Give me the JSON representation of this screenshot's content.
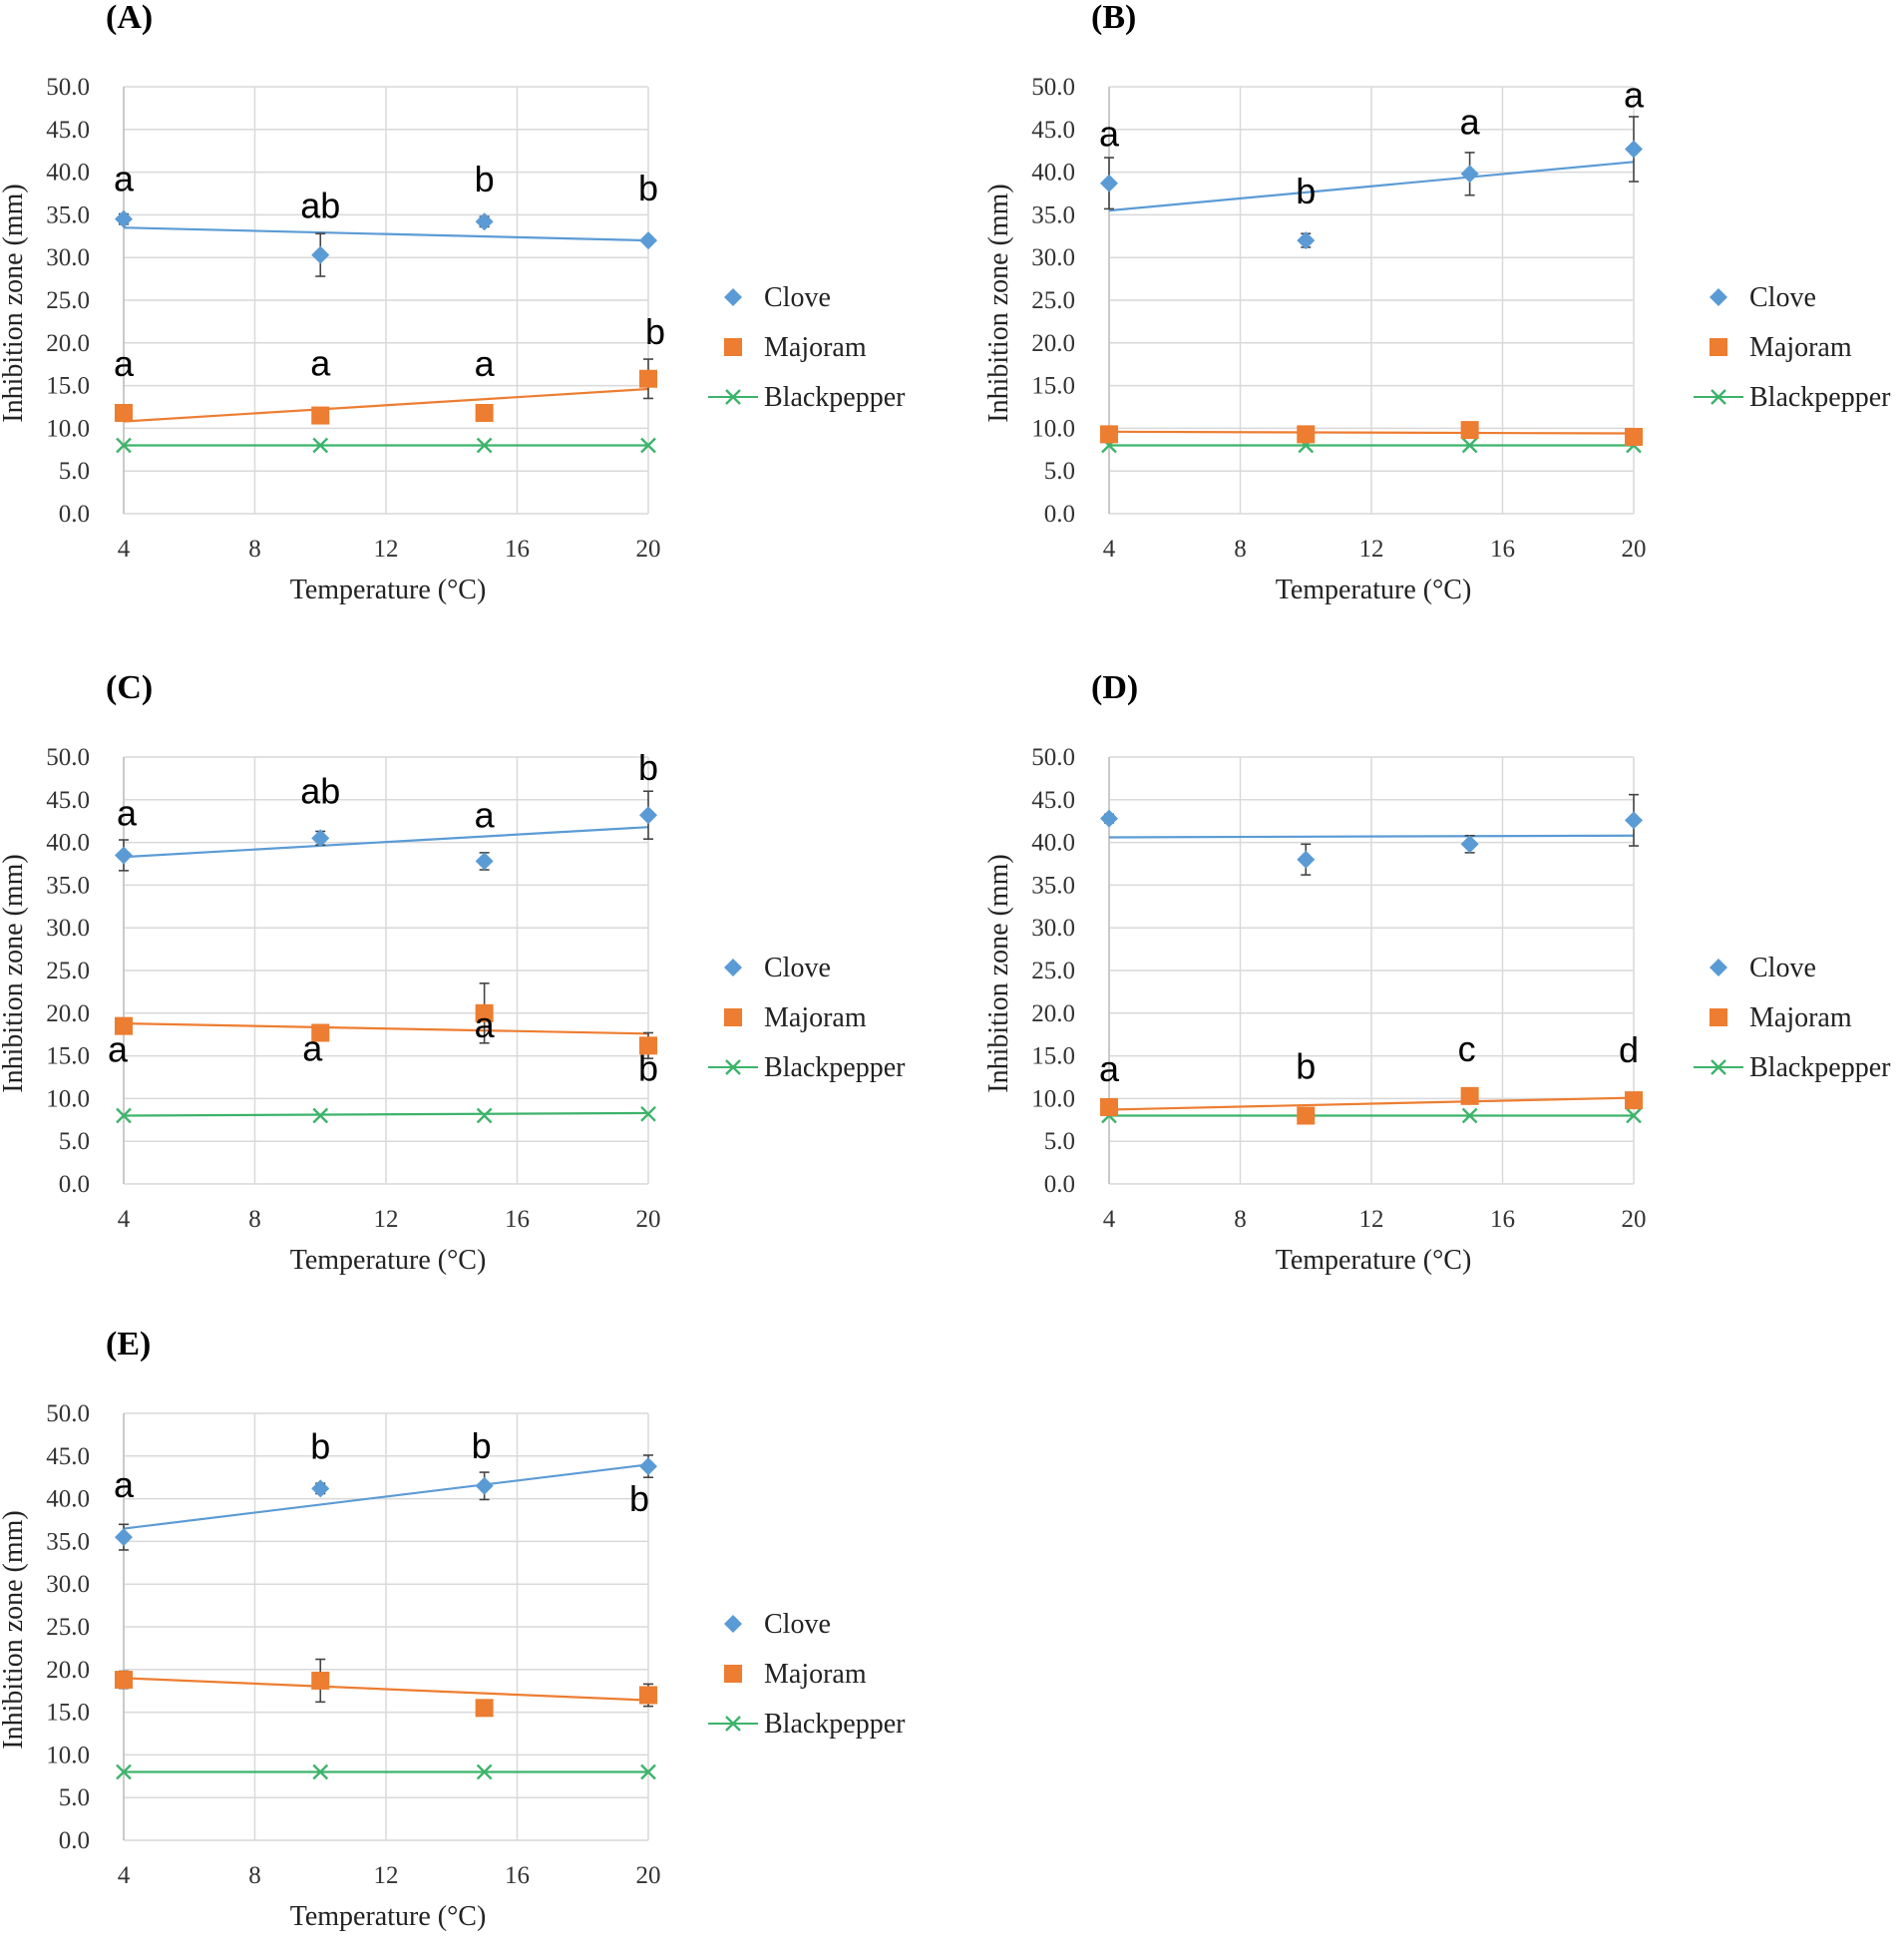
{
  "chart_data": [
    {
      "panel": "(A)",
      "type": "scatter",
      "xlabel": "Temperature  (°C)",
      "ylabel": "Inhibition zone (mm)",
      "xticks": [
        4,
        8,
        12,
        16,
        20
      ],
      "xlim": [
        4,
        20
      ],
      "yticks": [
        "0.0",
        "5.0",
        "10.0",
        "15.0",
        "20.0",
        "25.0",
        "30.0",
        "35.0",
        "40.0",
        "45.0",
        "50.0"
      ],
      "ylim": [
        0,
        50
      ],
      "series": [
        {
          "name": "Clove",
          "color": "#5b9bd5",
          "marker": "diamond",
          "x": [
            4,
            10,
            15,
            20
          ],
          "y": [
            34.5,
            30.3,
            34.2,
            32.0
          ],
          "err": [
            0.6,
            2.5,
            0.6,
            0.4
          ],
          "trend": [
            33.5,
            32.0
          ],
          "labels": [
            "a",
            "ab",
            "b",
            "b"
          ]
        },
        {
          "name": "Majoram",
          "color": "#ed7d31",
          "marker": "square",
          "x": [
            4,
            10,
            15,
            20
          ],
          "y": [
            11.8,
            11.5,
            11.8,
            15.8
          ],
          "err": [
            0.6,
            0.6,
            0.6,
            2.3
          ],
          "trend": [
            10.8,
            14.6
          ],
          "labels": [
            "a",
            "a",
            "a",
            "b"
          ]
        },
        {
          "name": "Blackpepper",
          "color": "#3db36b",
          "marker": "x",
          "x": [
            4,
            10,
            15,
            20
          ],
          "y": [
            8.0,
            8.0,
            8.0,
            8.0
          ],
          "err": [
            0,
            0,
            0,
            0
          ],
          "trend": [
            8.0,
            8.0
          ],
          "labels": []
        }
      ]
    },
    {
      "panel": "(B)",
      "type": "scatter",
      "xlabel": "Temperature  (°C)",
      "ylabel": "Inhibition zone (mm)",
      "xticks": [
        4,
        8,
        12,
        16,
        20
      ],
      "xlim": [
        4,
        20
      ],
      "yticks": [
        "0.0",
        "5.0",
        "10.0",
        "15.0",
        "20.0",
        "25.0",
        "30.0",
        "35.0",
        "40.0",
        "45.0",
        "50.0"
      ],
      "ylim": [
        0,
        50
      ],
      "series": [
        {
          "name": "Clove",
          "color": "#5b9bd5",
          "marker": "diamond",
          "x": [
            4,
            10,
            15,
            20
          ],
          "y": [
            38.7,
            32.0,
            39.8,
            42.7
          ],
          "err": [
            3.0,
            0.8,
            2.5,
            3.8
          ],
          "trend": [
            35.5,
            41.2
          ],
          "labels": [
            "a",
            "b",
            "a",
            "a"
          ]
        },
        {
          "name": "Majoram",
          "color": "#ed7d31",
          "marker": "square",
          "x": [
            4,
            10,
            15,
            20
          ],
          "y": [
            9.3,
            9.3,
            9.8,
            9.0
          ],
          "err": [
            0.4,
            0.4,
            0.8,
            0.4
          ],
          "trend": [
            9.6,
            9.4
          ],
          "labels": []
        },
        {
          "name": "Blackpepper",
          "color": "#3db36b",
          "marker": "x",
          "x": [
            4,
            10,
            15,
            20
          ],
          "y": [
            8.0,
            8.0,
            8.0,
            8.0
          ],
          "err": [
            0,
            0,
            0,
            0
          ],
          "trend": [
            8.0,
            8.0
          ],
          "labels": []
        }
      ]
    },
    {
      "panel": "(C)",
      "type": "scatter",
      "xlabel": "Temperature  (°C)",
      "ylabel": "Inhibition zone (mm)",
      "xticks": [
        4,
        8,
        12,
        16,
        20
      ],
      "xlim": [
        4,
        20
      ],
      "yticks": [
        "0.0",
        "5.0",
        "10.0",
        "15.0",
        "20.0",
        "25.0",
        "30.0",
        "35.0",
        "40.0",
        "45.0",
        "50.0"
      ],
      "ylim": [
        0,
        50
      ],
      "series": [
        {
          "name": "Clove",
          "color": "#5b9bd5",
          "marker": "diamond",
          "x": [
            4,
            10,
            15,
            20
          ],
          "y": [
            38.5,
            40.5,
            37.8,
            43.2
          ],
          "err": [
            1.8,
            0.8,
            1.0,
            2.8
          ],
          "trend": [
            38.3,
            41.8
          ],
          "labels": [
            "a",
            "ab",
            "a",
            "b"
          ]
        },
        {
          "name": "Majoram",
          "color": "#ed7d31",
          "marker": "square",
          "x": [
            4,
            10,
            15,
            20
          ],
          "y": [
            18.5,
            17.7,
            20.0,
            16.2
          ],
          "err": [
            0.4,
            0.4,
            3.5,
            1.5
          ],
          "trend": [
            18.8,
            17.6
          ],
          "labels": [
            "a",
            "a",
            "a",
            "b"
          ]
        },
        {
          "name": "Blackpepper",
          "color": "#3db36b",
          "marker": "x",
          "x": [
            4,
            10,
            15,
            20
          ],
          "y": [
            8.0,
            8.0,
            8.0,
            8.2
          ],
          "err": [
            0,
            0,
            0,
            0
          ],
          "trend": [
            8.0,
            8.3
          ],
          "labels": []
        }
      ]
    },
    {
      "panel": "(D)",
      "type": "scatter",
      "xlabel": "Temperature  (°C)",
      "ylabel": "Inhibition zone (mm)",
      "xticks": [
        4,
        8,
        12,
        16,
        20
      ],
      "xlim": [
        4,
        20
      ],
      "yticks": [
        "0.0",
        "5.0",
        "10.0",
        "15.0",
        "20.0",
        "25.0",
        "30.0",
        "35.0",
        "40.0",
        "45.0",
        "50.0"
      ],
      "ylim": [
        0,
        50
      ],
      "series": [
        {
          "name": "Clove",
          "color": "#5b9bd5",
          "marker": "diamond",
          "x": [
            4,
            10,
            15,
            20
          ],
          "y": [
            42.8,
            38.0,
            39.8,
            42.6
          ],
          "err": [
            0.5,
            1.8,
            1.0,
            3.0
          ],
          "trend": [
            40.6,
            40.8
          ],
          "labels": []
        },
        {
          "name": "Majoram",
          "color": "#ed7d31",
          "marker": "square",
          "x": [
            4,
            10,
            15,
            20
          ],
          "y": [
            9.0,
            8.0,
            10.3,
            9.8
          ],
          "err": [
            0.4,
            0.4,
            0.4,
            0.4
          ],
          "trend": [
            8.7,
            10.1
          ],
          "labels": [
            "a",
            "b",
            "c",
            "d"
          ]
        },
        {
          "name": "Blackpepper",
          "color": "#3db36b",
          "marker": "x",
          "x": [
            4,
            10,
            15,
            20
          ],
          "y": [
            8.0,
            8.0,
            8.0,
            8.0
          ],
          "err": [
            0,
            0,
            0,
            0
          ],
          "trend": [
            8.0,
            8.0
          ],
          "labels": []
        }
      ]
    },
    {
      "panel": "(E)",
      "type": "scatter",
      "xlabel": "Temperature  (°C)",
      "ylabel": "Inhibition zone (mm)",
      "xticks": [
        4,
        8,
        12,
        16,
        20
      ],
      "xlim": [
        4,
        20
      ],
      "yticks": [
        "0.0",
        "5.0",
        "10.0",
        "15.0",
        "20.0",
        "25.0",
        "30.0",
        "35.0",
        "40.0",
        "45.0",
        "50.0"
      ],
      "ylim": [
        0,
        50
      ],
      "series": [
        {
          "name": "Clove",
          "color": "#5b9bd5",
          "marker": "diamond",
          "x": [
            4,
            10,
            15,
            20
          ],
          "y": [
            35.5,
            41.2,
            41.5,
            43.8
          ],
          "err": [
            1.5,
            0.6,
            1.6,
            1.3
          ],
          "trend": [
            36.5,
            44.0
          ],
          "labels": [
            "a",
            "b",
            "b",
            "b"
          ]
        },
        {
          "name": "Majoram",
          "color": "#ed7d31",
          "marker": "square",
          "x": [
            4,
            10,
            15,
            20
          ],
          "y": [
            18.8,
            18.7,
            15.5,
            17.0
          ],
          "err": [
            1.0,
            2.5,
            0.6,
            1.3
          ],
          "trend": [
            19.0,
            16.4
          ],
          "labels": []
        },
        {
          "name": "Blackpepper",
          "color": "#3db36b",
          "marker": "x",
          "x": [
            4,
            10,
            15,
            20
          ],
          "y": [
            8.0,
            8.0,
            8.0,
            8.0
          ],
          "err": [
            0,
            0,
            0,
            0
          ],
          "trend": [
            8.0,
            8.0
          ],
          "labels": []
        }
      ]
    }
  ]
}
